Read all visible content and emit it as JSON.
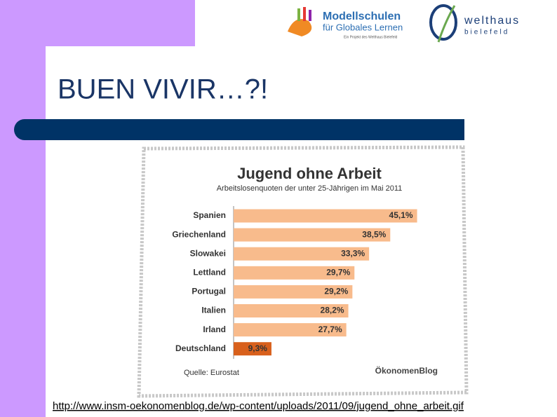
{
  "slide": {
    "title": "BUEN VIVIR…?!",
    "source_url": "http://www.insm-oekonomenblog.de/wp-content/uploads/2011/09/jugend_ohne_arbeit.gif"
  },
  "logos": {
    "school_name": "Modellschulen",
    "school_subtitle": "für Globales Lernen",
    "school_note": "Ein Projekt des Welthaus Bielefeld",
    "partner_name": "welthaus",
    "partner_city": "bielefeld"
  },
  "chart_data": {
    "type": "bar",
    "orientation": "horizontal",
    "title": "Jugend ohne Arbeit",
    "subtitle": "Arbeitslosenquoten der unter 25-Jährigen im Mai 2011",
    "categories": [
      "Spanien",
      "Griechenland",
      "Slowakei",
      "Lettland",
      "Portugal",
      "Italien",
      "Irland",
      "Deutschland"
    ],
    "values": [
      45.1,
      38.5,
      33.3,
      29.7,
      29.2,
      28.2,
      27.7,
      9.3
    ],
    "value_labels": [
      "45,1%",
      "38,5%",
      "33,3%",
      "29,7%",
      "29,2%",
      "28,2%",
      "27,7%",
      "9,3%"
    ],
    "colors": [
      "#f8bb8c",
      "#f8bb8c",
      "#f8bb8c",
      "#f8bb8c",
      "#f8bb8c",
      "#f8bb8c",
      "#f8bb8c",
      "#d8601c"
    ],
    "source": "Quelle:  Eurostat",
    "brand": "ÖkonomenBlog"
  }
}
